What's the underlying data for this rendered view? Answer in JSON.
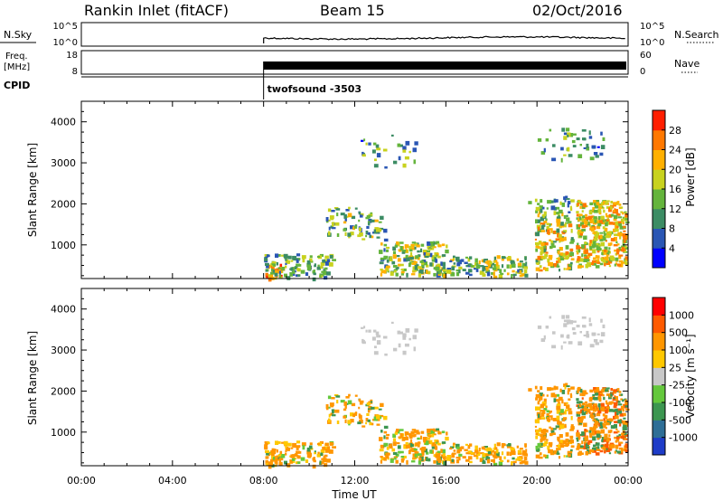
{
  "header": {
    "station": "Rankin Inlet (fitACF)",
    "beam": "Beam 15",
    "date": "02/Oct/2016"
  },
  "noise_panel": {
    "left_label": "N.Sky",
    "left_ticks": [
      "10^5",
      "10^0"
    ],
    "right_label": "N.Search",
    "right_ticks": [
      "10^5",
      "10^0"
    ]
  },
  "freq_panel": {
    "left_label_line1": "Freq.",
    "left_label_line2": "[MHz]",
    "left_ticks": [
      "18",
      "8"
    ],
    "right_label": "Nave",
    "right_ticks": [
      "60",
      "0"
    ]
  },
  "cpid": {
    "label": "CPID",
    "program": "twofsound -3503"
  },
  "x_axis": {
    "label": "Time UT",
    "ticks": [
      "00:00",
      "04:00",
      "08:00",
      "12:00",
      "16:00",
      "20:00",
      "00:00"
    ]
  },
  "chart_data": [
    {
      "type": "heatmap",
      "name": "power",
      "ylabel": "Slant Range [km]",
      "yticks": [
        1000,
        2000,
        3000,
        4000
      ],
      "ylim": [
        180,
        4500
      ],
      "xlim_hours": [
        0,
        24
      ],
      "data_start_hour": 8.0,
      "colorbar": {
        "label": "Power [dB]",
        "ticks": [
          "4",
          "8",
          "12",
          "16",
          "20",
          "24",
          "28"
        ],
        "colors": [
          "#0000ff",
          "#2a56b4",
          "#3c8c64",
          "#64b43c",
          "#c8d21e",
          "#ffb000",
          "#ff7800",
          "#ff1e00"
        ]
      }
    },
    {
      "type": "heatmap",
      "name": "velocity",
      "ylabel": "Slant Range [km]",
      "yticks": [
        1000,
        2000,
        3000,
        4000
      ],
      "ylim": [
        180,
        4500
      ],
      "xlim_hours": [
        0,
        24
      ],
      "data_start_hour": 8.0,
      "colorbar": {
        "label": "Velocity [m s⁻¹]",
        "ticks": [
          "1000",
          "500",
          "100",
          "25",
          "-25",
          "-100",
          "-500",
          "-1000"
        ],
        "colors": [
          "#1e3cc8",
          "#2e6e96",
          "#3c9650",
          "#64c83c",
          "#c8c8c8",
          "#ffc800",
          "#ff9600",
          "#ff5a00",
          "#ff0000"
        ]
      }
    }
  ]
}
